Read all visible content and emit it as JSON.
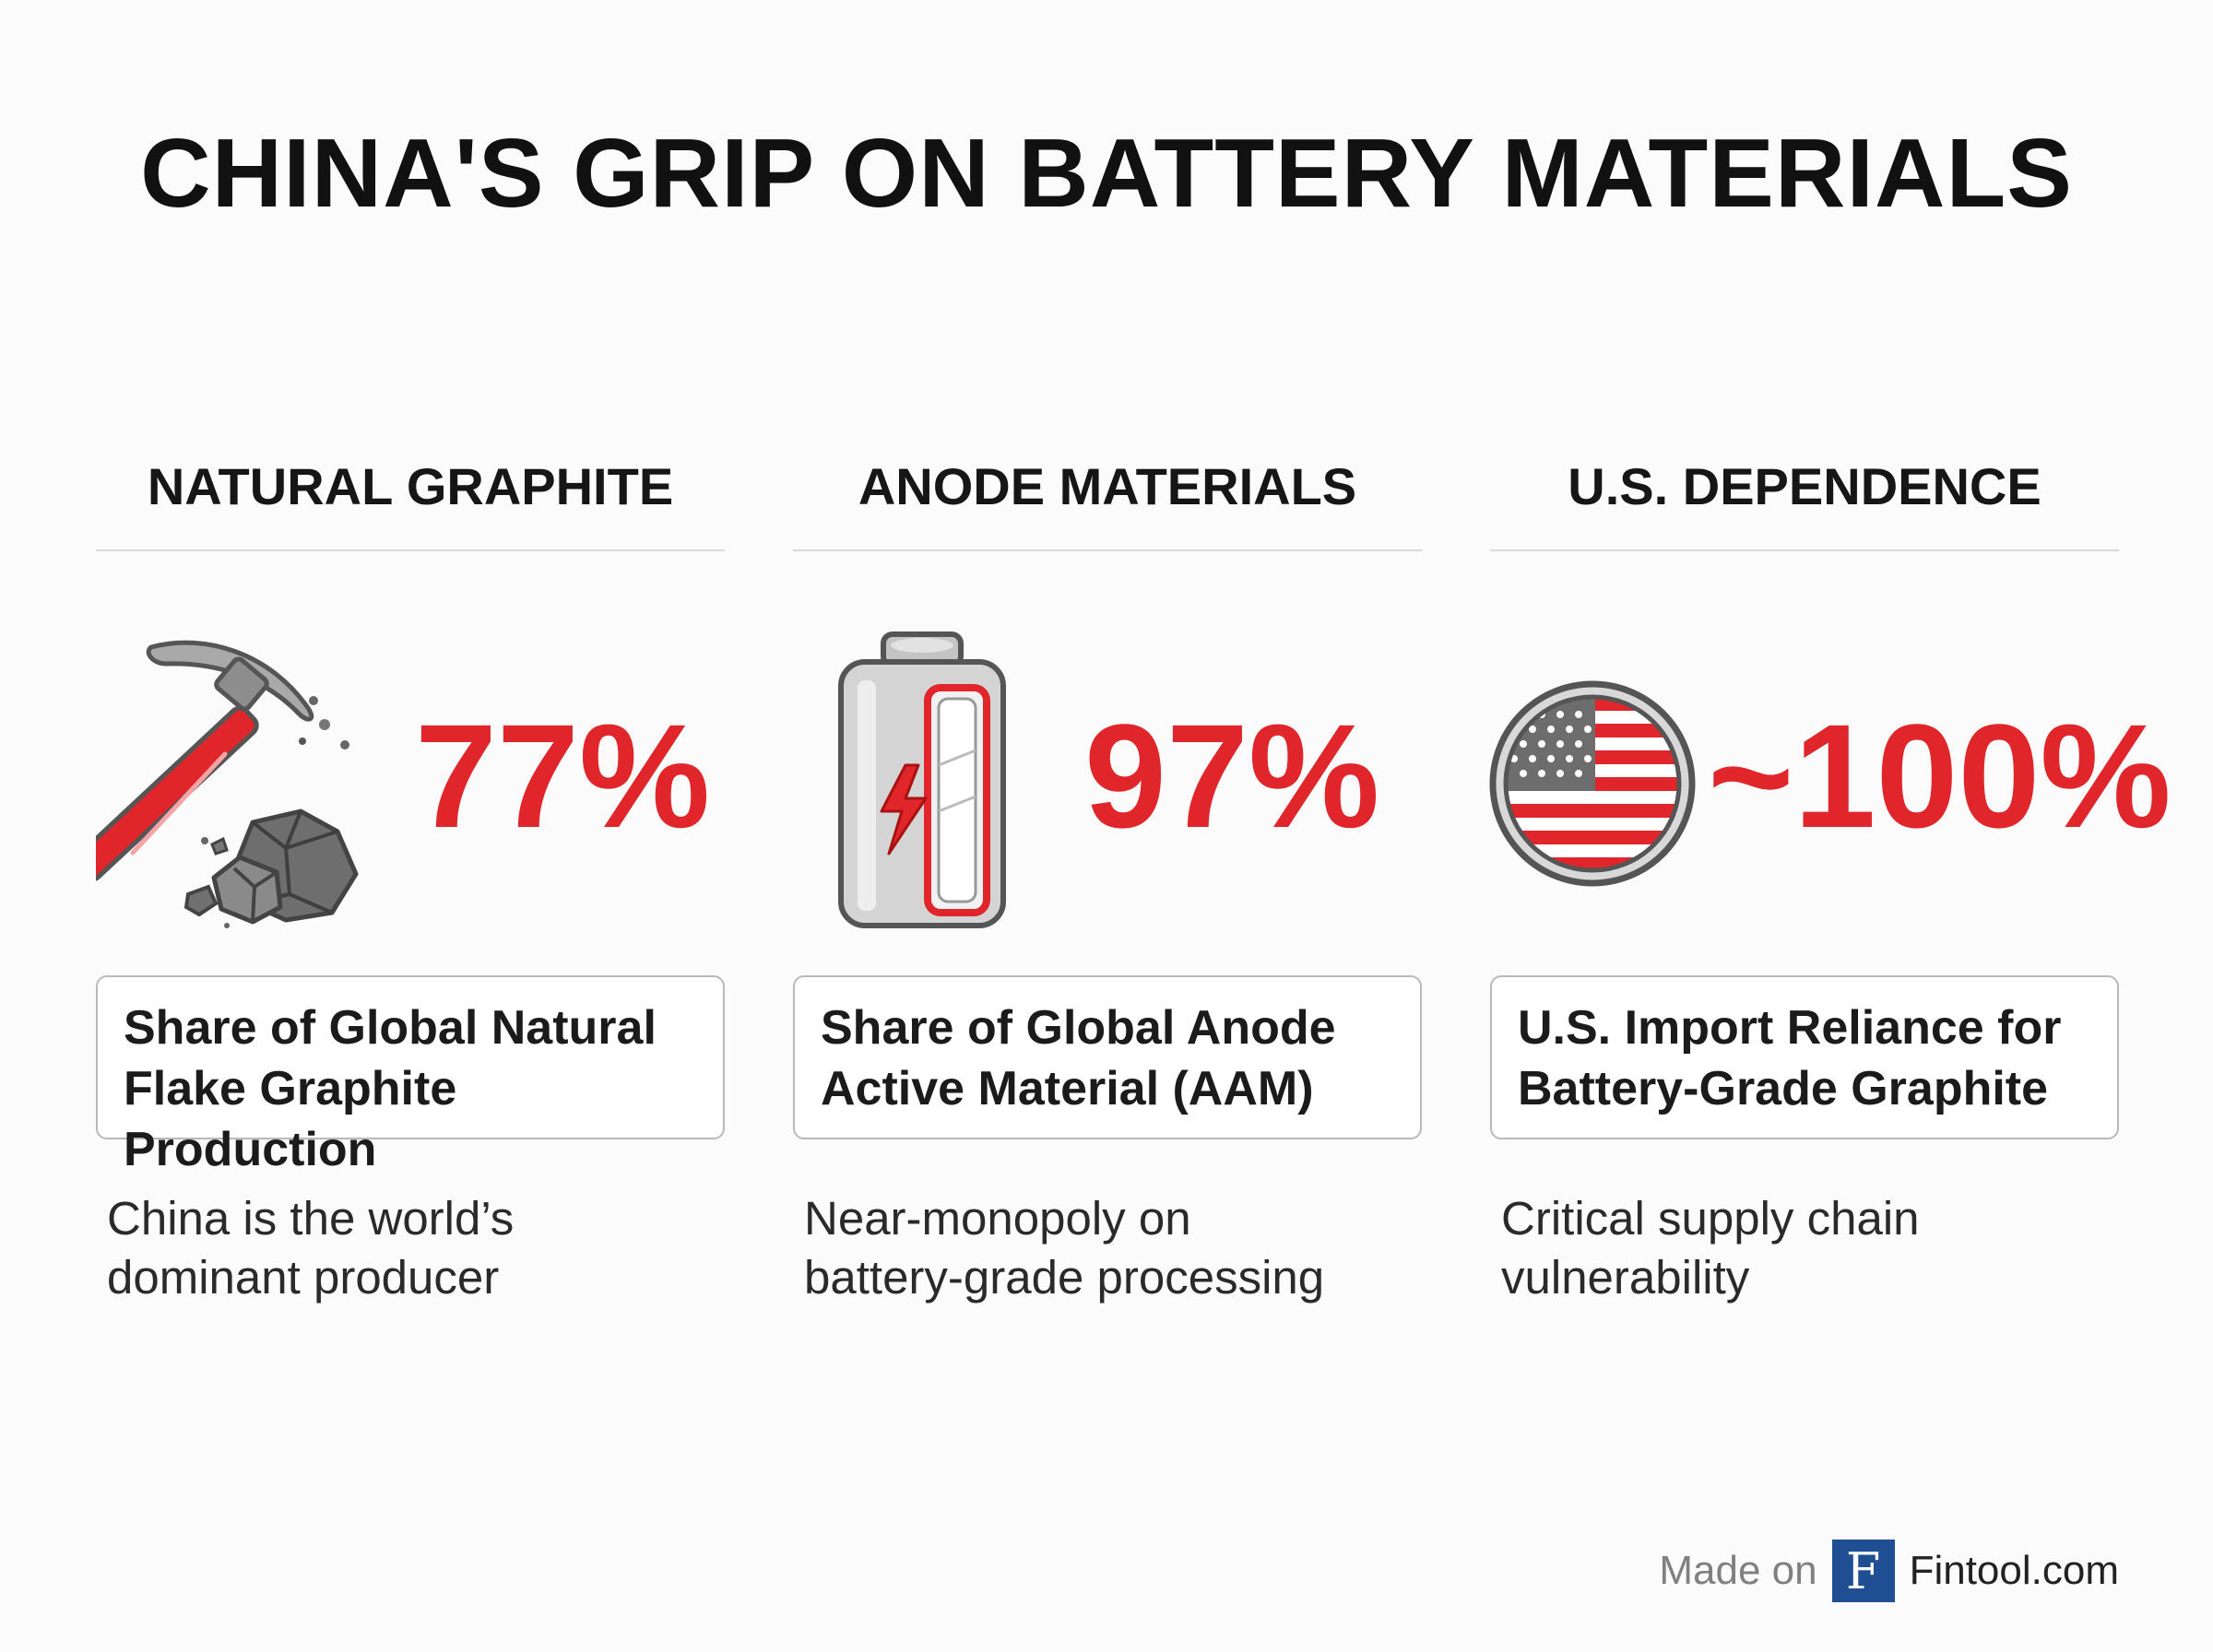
{
  "title": "CHINA'S GRIP ON BATTERY MATERIALS",
  "chart_data": {
    "type": "table",
    "title": "CHINA'S GRIP ON BATTERY MATERIALS",
    "metrics": [
      {
        "category": "NATURAL GRAPHITE",
        "value_label": "77%",
        "value": 77,
        "unit": "%",
        "description": [
          "Share of Global Natural",
          "Flake Graphite Production"
        ],
        "note": [
          "China is the world’s",
          "dominant producer"
        ],
        "icon": "pickaxe-graphite-icon"
      },
      {
        "category": "ANODE MATERIALS",
        "value_label": "97%",
        "value": 97,
        "unit": "%",
        "description": [
          "Share of Global Anode",
          "Active Material (AAM)"
        ],
        "note": [
          "Near-monopoly on",
          "battery-grade processing"
        ],
        "icon": "battery-icon"
      },
      {
        "category": "U.S. DEPENDENCE",
        "value_label": "~100%",
        "value": 100,
        "unit": "%",
        "description": [
          "U.S. Import Reliance for",
          "Battery-Grade Graphite"
        ],
        "note": [
          "Critical supply chain",
          "vulnerability"
        ],
        "icon": "us-flag-icon"
      }
    ]
  },
  "footer": {
    "made_on": "Made on",
    "logo_letter": "F",
    "brand": "Fintool.com"
  },
  "colors": {
    "accent": "#e0262b",
    "brand_blue": "#1f4e93",
    "rule": "#d9d9d9"
  }
}
